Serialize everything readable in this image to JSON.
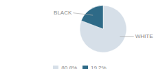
{
  "chart_data": {
    "type": "pie",
    "categories": [
      "WHITE",
      "BLACK"
    ],
    "values": [
      80.8,
      19.2
    ],
    "value_labels": [
      "80.8%",
      "19.2%"
    ],
    "colors": [
      "#d6dfe8",
      "#2e6a87"
    ],
    "legend": "bottom"
  }
}
